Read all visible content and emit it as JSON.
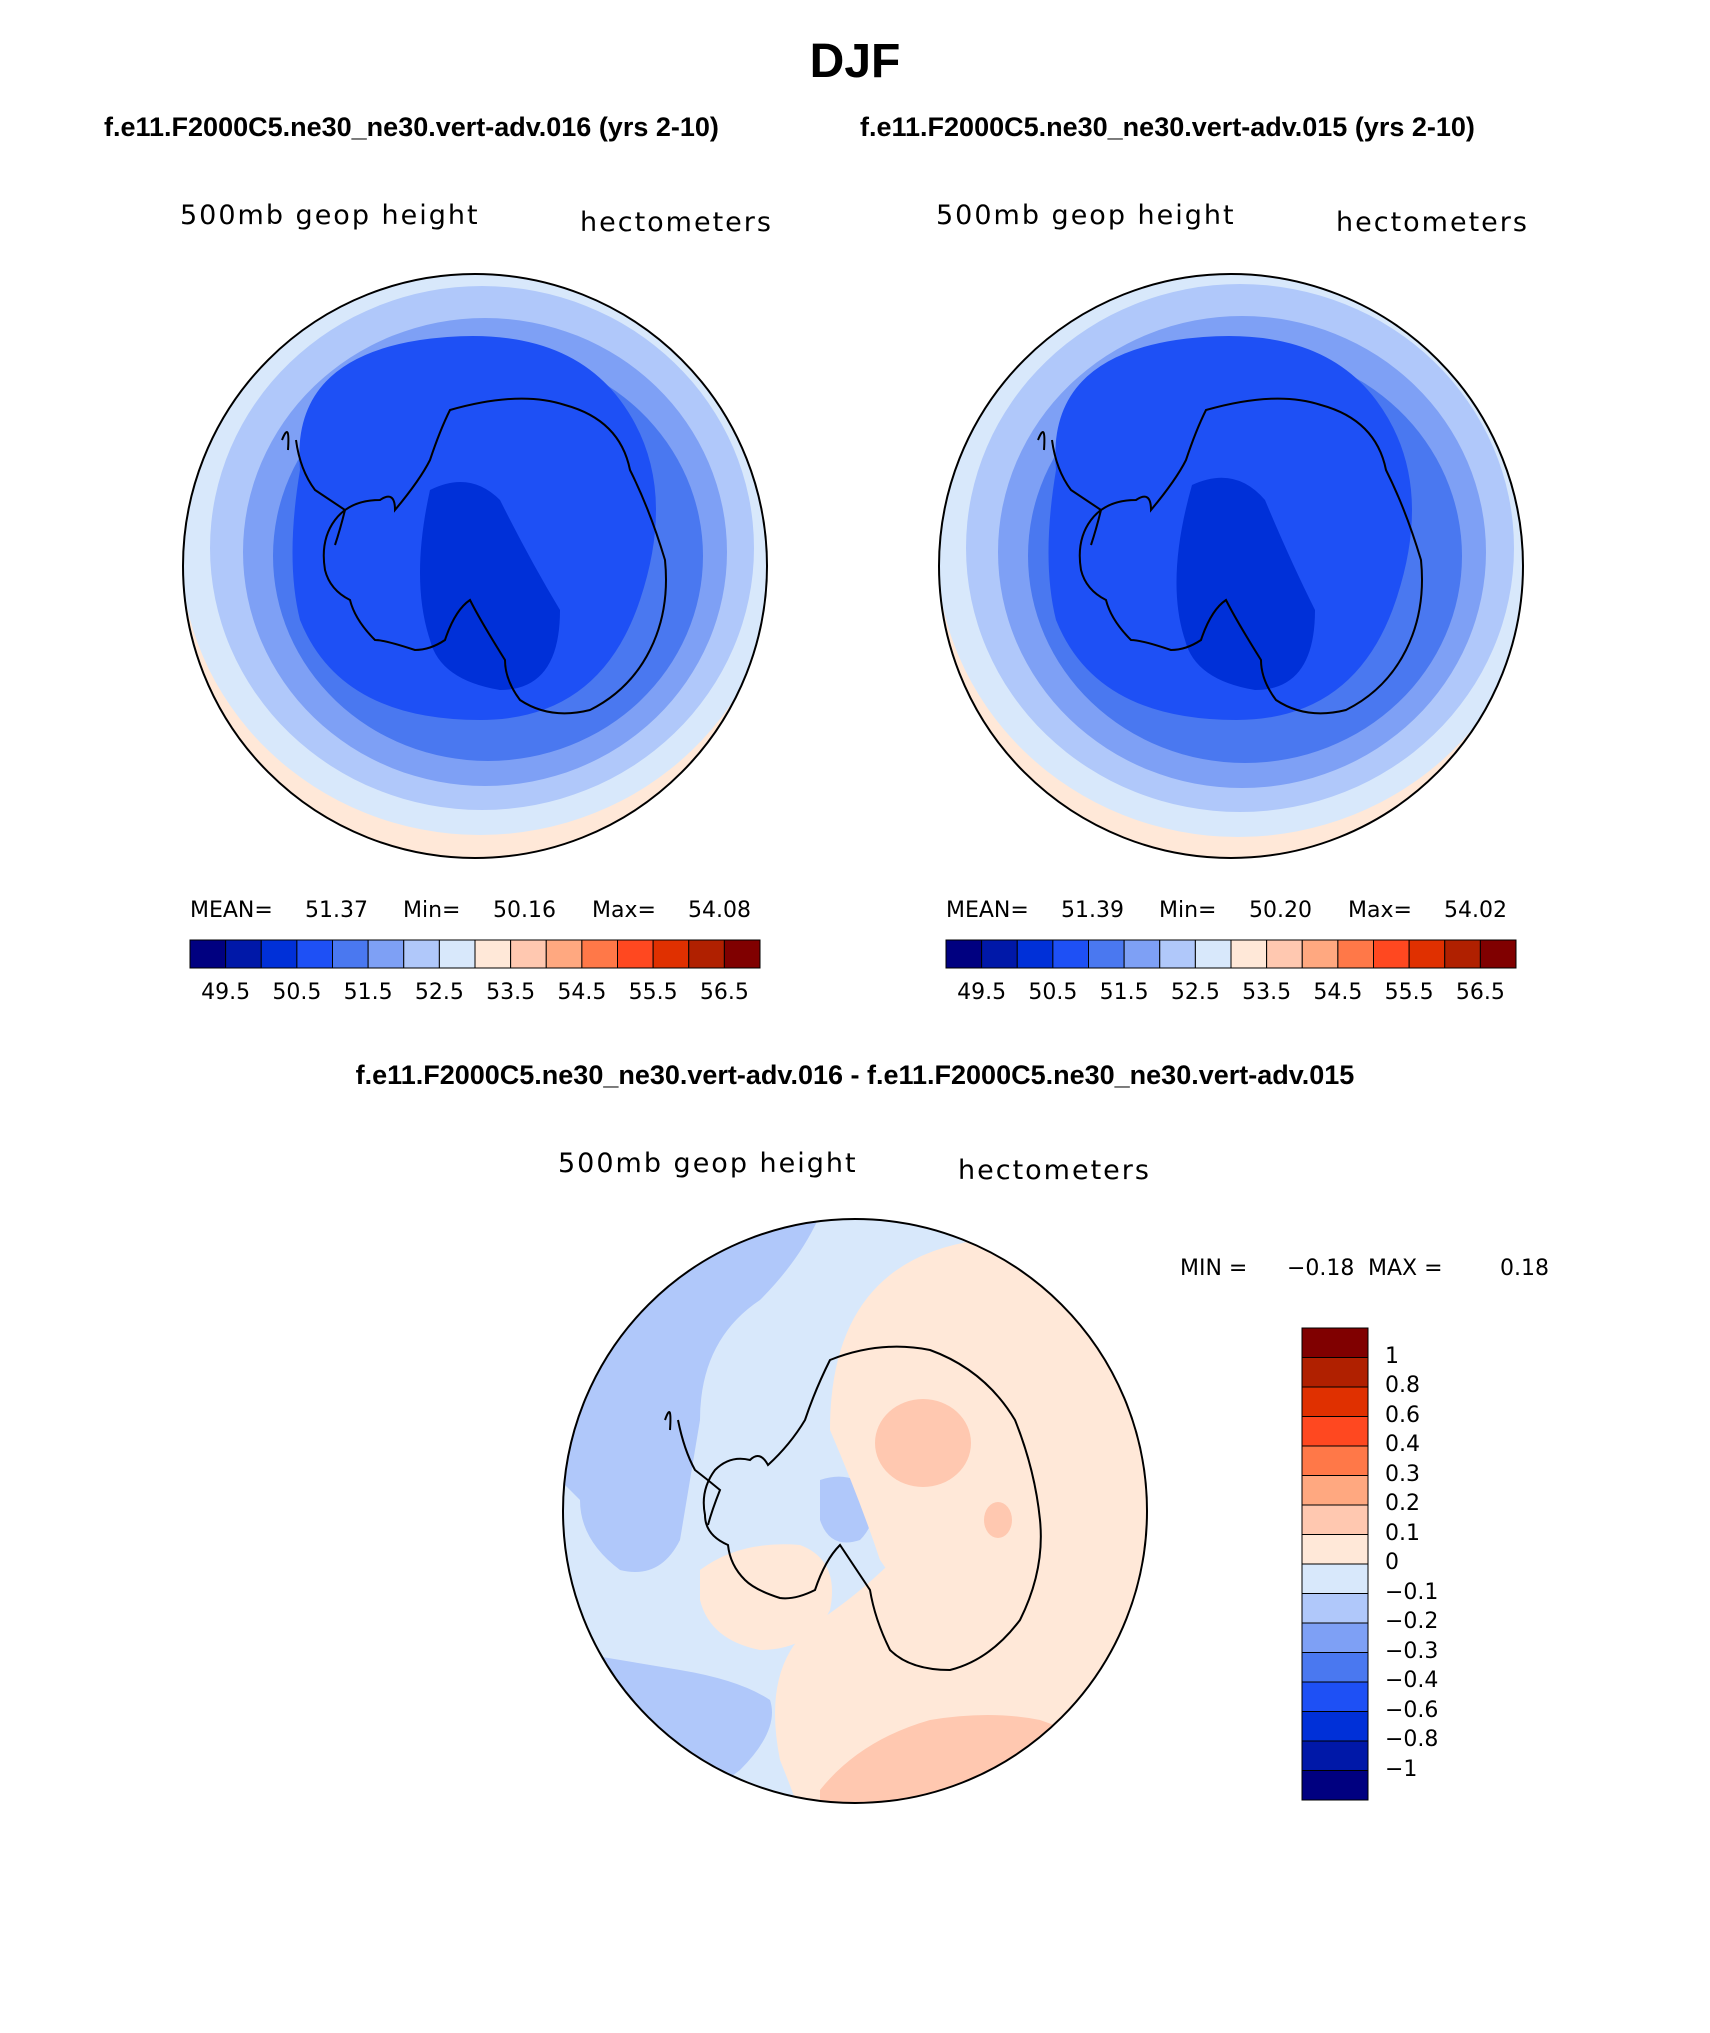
{
  "title": "DJF",
  "panels": [
    {
      "case_title": "f.e11.F2000C5.ne30_ne30.vert-adv.016 (yrs 2-10)",
      "variable": "500mb geop height",
      "units": "hectometers",
      "mean_label": "MEAN=",
      "mean": "51.37",
      "min_label": "Min=",
      "min": "50.16",
      "max_label": "Max=",
      "max": "54.08"
    },
    {
      "case_title": "f.e11.F2000C5.ne30_ne30.vert-adv.015 (yrs 2-10)",
      "variable": "500mb geop height",
      "units": "hectometers",
      "mean_label": "MEAN=",
      "mean": "51.39",
      "min_label": "Min=",
      "min": "50.20",
      "max_label": "Max=",
      "max": "54.02"
    }
  ],
  "colorbar": {
    "colors": [
      "#000080",
      "#0018a8",
      "#0030d8",
      "#1e50f5",
      "#4a78f0",
      "#7ea0f5",
      "#b0c8fa",
      "#d8e8fb",
      "#ffe8d8",
      "#ffc8b0",
      "#ffa880",
      "#ff7848",
      "#ff4820",
      "#e03000",
      "#b02000",
      "#800000"
    ],
    "labels": [
      "49.5",
      "50.5",
      "51.5",
      "52.5",
      "53.5",
      "54.5",
      "55.5",
      "56.5"
    ]
  },
  "difference": {
    "title": "f.e11.F2000C5.ne30_ne30.vert-adv.016 - f.e11.F2000C5.ne30_ne30.vert-adv.015",
    "variable": "500mb geop height",
    "units": "hectometers",
    "min_label": "MIN =",
    "min": "−0.18",
    "max_label": "MAX =",
    "max": "0.18",
    "colorbar": {
      "colors": [
        "#800000",
        "#b02000",
        "#e03000",
        "#ff4820",
        "#ff7848",
        "#ffa880",
        "#ffc8b0",
        "#ffe8d8",
        "#d8e8fb",
        "#b0c8fa",
        "#7ea0f5",
        "#4a78f0",
        "#1e50f5",
        "#0030d8",
        "#0018a8",
        "#000080"
      ],
      "labels": [
        "1",
        "0.8",
        "0.6",
        "0.4",
        "0.3",
        "0.2",
        "0.1",
        "0",
        "−0.1",
        "−0.2",
        "−0.3",
        "−0.4",
        "−0.6",
        "−0.8",
        "−1"
      ]
    }
  }
}
